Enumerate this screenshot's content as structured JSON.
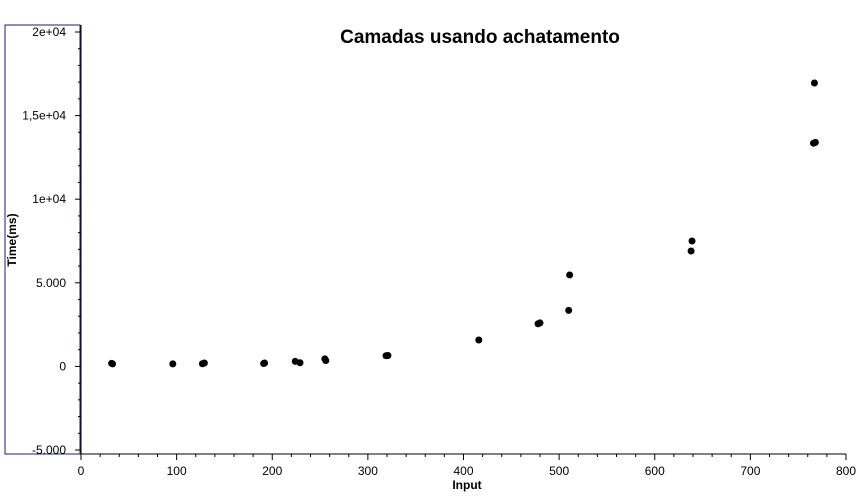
{
  "chart_data": {
    "type": "scatter",
    "title": "Camadas usando achatamento",
    "xlabel": "Input",
    "ylabel": "Time(ms)",
    "xlim": [
      0,
      800
    ],
    "ylim": [
      -5000,
      20000
    ],
    "x_ticks": [
      0,
      100,
      200,
      300,
      400,
      500,
      600,
      700,
      800
    ],
    "y_ticks": [
      -5000,
      0,
      5000,
      10000,
      15000,
      20000
    ],
    "x_tick_labels": [
      "0",
      "100",
      "200",
      "300",
      "400",
      "500",
      "600",
      "700",
      "800"
    ],
    "y_tick_labels": [
      "-5.000",
      "0",
      "5.000",
      "1e+04",
      "1,5e+04",
      "2e+04"
    ],
    "grid": false,
    "legend": "none",
    "colors": {
      "point": "#000000",
      "frame": "#1c1c6e"
    },
    "series": [
      {
        "points": [
          [
            32,
            180
          ],
          [
            33,
            150
          ],
          [
            96,
            150
          ],
          [
            127,
            160
          ],
          [
            129,
            200
          ],
          [
            191,
            170
          ],
          [
            192,
            200
          ],
          [
            224,
            300
          ],
          [
            229,
            220
          ],
          [
            255,
            450
          ],
          [
            256,
            350
          ],
          [
            319,
            640
          ],
          [
            321,
            650
          ],
          [
            416,
            1580
          ],
          [
            478,
            2550
          ],
          [
            480,
            2600
          ],
          [
            510,
            3350
          ],
          [
            511,
            5470
          ],
          [
            638,
            6900
          ],
          [
            639,
            7500
          ],
          [
            766,
            13350
          ],
          [
            768,
            13400
          ],
          [
            767,
            16950
          ]
        ]
      }
    ]
  }
}
